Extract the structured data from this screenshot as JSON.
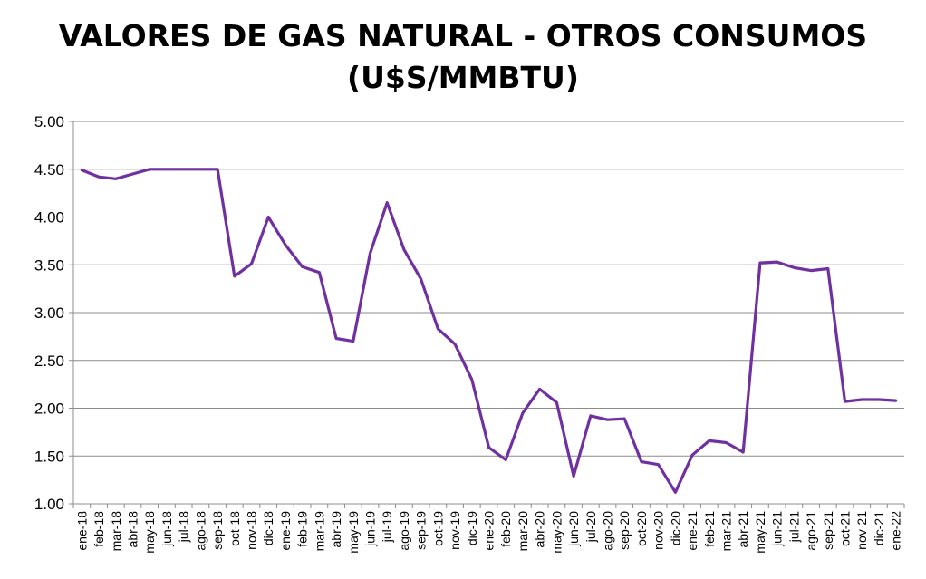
{
  "chart_data": {
    "type": "line",
    "title_lines": [
      "VALORES DE GAS NATURAL - OTROS CONSUMOS",
      "(U$S/MMBTU)"
    ],
    "xlabel": "",
    "ylabel": "",
    "ylim": [
      1.0,
      5.0
    ],
    "yticks": [
      "1.00",
      "1.50",
      "2.00",
      "2.50",
      "3.00",
      "3.50",
      "4.00",
      "4.50",
      "5.00"
    ],
    "grid": true,
    "legend": "none",
    "line_color": "#7030A0",
    "categories": [
      "ene-18",
      "feb-18",
      "mar-18",
      "abr-18",
      "may-18",
      "jun-18",
      "jul-18",
      "ago-18",
      "sep-18",
      "oct-18",
      "nov-18",
      "dic-18",
      "ene-19",
      "feb-19",
      "mar-19",
      "abr-19",
      "may-19",
      "jun-19",
      "jul-19",
      "ago-19",
      "sep-19",
      "oct-19",
      "nov-19",
      "dic-19",
      "ene-20",
      "feb-20",
      "mar-20",
      "abr-20",
      "may-20",
      "jun-20",
      "jul-20",
      "ago-20",
      "sep-20",
      "oct-20",
      "nov-20",
      "dic-20",
      "ene-21",
      "feb-21",
      "mar-21",
      "abr-21",
      "may-21",
      "jun-21",
      "jul-21",
      "ago-21",
      "sep-21",
      "oct-21",
      "nov-21",
      "dic-21",
      "ene-22"
    ],
    "values": [
      4.49,
      4.42,
      4.4,
      4.45,
      4.5,
      4.5,
      4.5,
      4.5,
      4.5,
      3.38,
      3.51,
      4.0,
      3.71,
      3.48,
      3.42,
      2.73,
      2.7,
      3.62,
      4.15,
      3.66,
      3.35,
      2.83,
      2.67,
      2.3,
      1.59,
      1.46,
      1.95,
      2.2,
      2.06,
      1.29,
      1.92,
      1.88,
      1.89,
      1.44,
      1.41,
      1.12,
      1.51,
      1.66,
      1.64,
      1.54,
      3.52,
      3.53,
      3.47,
      3.44,
      3.46,
      2.07,
      2.09,
      2.09,
      2.08
    ]
  }
}
